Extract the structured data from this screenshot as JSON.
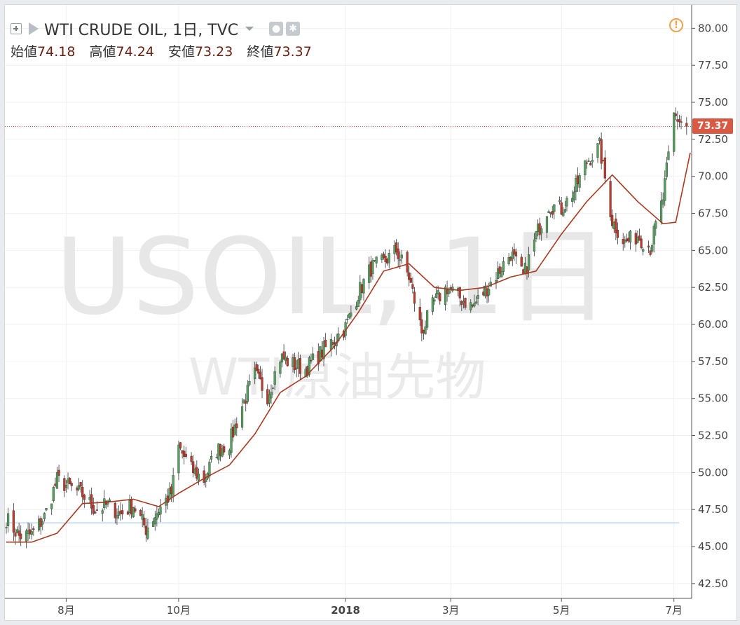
{
  "header": {
    "title": "WTI CRUDE OIL, 1日, TVC",
    "ohlc": [
      {
        "label": "始値",
        "value": "74.18"
      },
      {
        "label": "高値",
        "value": "74.24"
      },
      {
        "label": "安値",
        "value": "73.23"
      },
      {
        "label": "終値",
        "value": "73.37"
      }
    ]
  },
  "watermark": {
    "symbol": "USOIL, 1日",
    "description": "WTI原油先物"
  },
  "last_price_label": "73.37",
  "colors": {
    "up": "#53a35e",
    "down": "#c0392b",
    "ma": "#a8391f",
    "last_line": "#d95a44",
    "ref_line": "#b9d6f2"
  },
  "icons": [
    "add-icon",
    "flag-icon",
    "dropdown-icon",
    "eye-icon",
    "gear-icon",
    "warning-icon"
  ],
  "chart_data": {
    "type": "candlestick",
    "title": "WTI CRUDE OIL, 1日, TVC",
    "ylim": [
      41.5,
      81.2
    ],
    "yticks": [
      "80.00",
      "77.50",
      "75.00",
      "72.50",
      "70.00",
      "67.50",
      "65.00",
      "62.50",
      "60.00",
      "57.50",
      "55.00",
      "52.50",
      "50.00",
      "47.50",
      "45.00",
      "42.50"
    ],
    "xlim": [
      "2017-06-29",
      "2018-07-11"
    ],
    "xticks": [
      {
        "label": "8月",
        "date": "2017-08-01"
      },
      {
        "label": "10月",
        "date": "2017-10-02"
      },
      {
        "label": "2018",
        "date": "2018-01-02"
      },
      {
        "label": "3月",
        "date": "2018-03-01"
      },
      {
        "label": "5月",
        "date": "2018-05-01"
      },
      {
        "label": "7月",
        "date": "2018-07-02"
      }
    ],
    "last_price": 73.37,
    "reference_line": 46.6,
    "series": [
      {
        "name": "WTI CRUDE OIL",
        "kind": "close",
        "points": [
          [
            "2017-06-29",
            46.9
          ],
          [
            "2017-07-06",
            45.7
          ],
          [
            "2017-07-13",
            45.8
          ],
          [
            "2017-07-20",
            47.0
          ],
          [
            "2017-07-27",
            49.5
          ],
          [
            "2017-08-03",
            49.0
          ],
          [
            "2017-08-10",
            48.5
          ],
          [
            "2017-08-17",
            47.5
          ],
          [
            "2017-08-24",
            47.8
          ],
          [
            "2017-08-31",
            47.2
          ],
          [
            "2017-09-07",
            47.8
          ],
          [
            "2017-09-14",
            46.2
          ],
          [
            "2017-09-21",
            47.5
          ],
          [
            "2017-09-28",
            48.6
          ],
          [
            "2017-10-02",
            51.7
          ],
          [
            "2017-10-09",
            50.2
          ],
          [
            "2017-10-16",
            49.5
          ],
          [
            "2017-10-23",
            51.5
          ],
          [
            "2017-10-30",
            52.0
          ],
          [
            "2017-11-06",
            54.5
          ],
          [
            "2017-11-13",
            56.6
          ],
          [
            "2017-11-20",
            55.2
          ],
          [
            "2017-11-27",
            57.8
          ],
          [
            "2017-12-04",
            57.3
          ],
          [
            "2017-12-11",
            57.0
          ],
          [
            "2017-12-18",
            57.9
          ],
          [
            "2018-01-02",
            59.8
          ],
          [
            "2018-01-09",
            62.1
          ],
          [
            "2018-01-16",
            63.8
          ],
          [
            "2018-01-23",
            64.2
          ],
          [
            "2018-01-30",
            65.0
          ],
          [
            "2018-02-06",
            63.2
          ],
          [
            "2018-02-13",
            59.5
          ],
          [
            "2018-02-20",
            61.5
          ],
          [
            "2018-02-27",
            62.5
          ],
          [
            "2018-03-06",
            61.8
          ],
          [
            "2018-03-13",
            61.2
          ],
          [
            "2018-03-20",
            62.3
          ],
          [
            "2018-03-27",
            63.5
          ],
          [
            "2018-04-03",
            64.8
          ],
          [
            "2018-04-10",
            63.2
          ],
          [
            "2018-04-17",
            66.0
          ],
          [
            "2018-04-24",
            68.1
          ],
          [
            "2018-05-01",
            67.8
          ],
          [
            "2018-05-08",
            69.0
          ],
          [
            "2018-05-15",
            71.0
          ],
          [
            "2018-05-22",
            72.0
          ],
          [
            "2018-05-29",
            67.0
          ],
          [
            "2018-06-05",
            65.5
          ],
          [
            "2018-06-12",
            66.0
          ],
          [
            "2018-06-19",
            65.2
          ],
          [
            "2018-06-26",
            68.5
          ],
          [
            "2018-07-02",
            74.1
          ],
          [
            "2018-07-09",
            73.37
          ]
        ]
      },
      {
        "name": "MA",
        "kind": "moving_average",
        "points": [
          [
            "2017-06-29",
            45.3
          ],
          [
            "2017-07-13",
            45.3
          ],
          [
            "2017-07-27",
            45.9
          ],
          [
            "2017-08-10",
            47.9
          ],
          [
            "2017-08-24",
            48.0
          ],
          [
            "2017-09-07",
            48.2
          ],
          [
            "2017-09-21",
            47.7
          ],
          [
            "2017-10-02",
            48.6
          ],
          [
            "2017-10-16",
            49.6
          ],
          [
            "2017-10-30",
            50.5
          ],
          [
            "2017-11-13",
            52.6
          ],
          [
            "2017-11-27",
            55.4
          ],
          [
            "2017-12-11",
            56.5
          ],
          [
            "2017-12-26",
            58.4
          ],
          [
            "2018-01-09",
            60.8
          ],
          [
            "2018-01-23",
            63.6
          ],
          [
            "2018-02-06",
            64.1
          ],
          [
            "2018-02-20",
            62.5
          ],
          [
            "2018-03-06",
            62.3
          ],
          [
            "2018-03-20",
            62.5
          ],
          [
            "2018-04-03",
            63.2
          ],
          [
            "2018-04-17",
            63.6
          ],
          [
            "2018-05-01",
            66.1
          ],
          [
            "2018-05-15",
            68.3
          ],
          [
            "2018-05-29",
            70.1
          ],
          [
            "2018-06-12",
            68.3
          ],
          [
            "2018-06-26",
            66.8
          ],
          [
            "2018-07-03",
            66.9
          ],
          [
            "2018-07-11",
            71.6
          ]
        ]
      }
    ]
  }
}
